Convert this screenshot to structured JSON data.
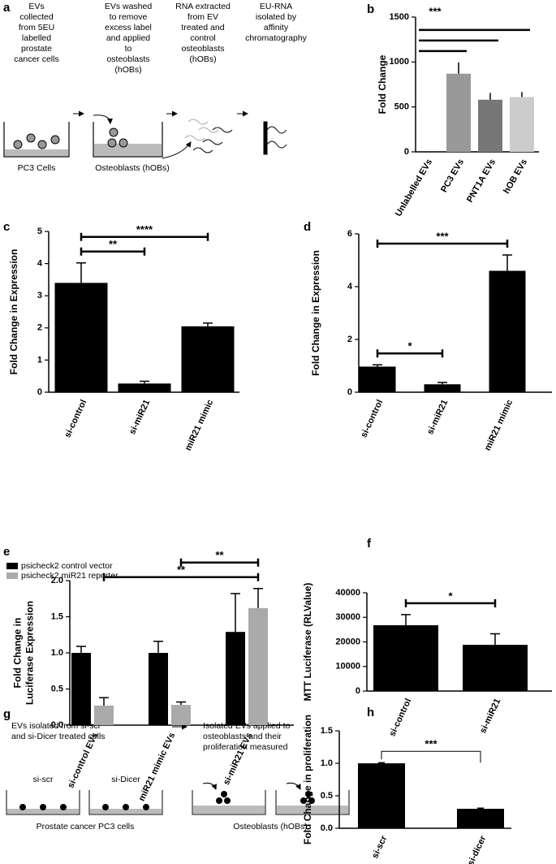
{
  "diagrams": {
    "a": {
      "panel": "a",
      "steps": [
        [
          "EVs",
          "collected",
          "from 5EU",
          "labelled",
          "prostate",
          "cancer cells"
        ],
        [
          "EVs washed",
          "to remove",
          "excess label",
          "and applied",
          "to",
          "osteoblasts",
          "(hOBs)"
        ],
        [
          "RNA extracted",
          "from EV",
          "treated and",
          "control",
          "osteoblasts",
          "(hOBs)"
        ],
        [
          "EU-RNA",
          "isolated by",
          "affinity",
          "chromatography"
        ]
      ],
      "labels": [
        "PC3 Cells",
        "Osteoblasts  (hOBs)"
      ]
    },
    "g": {
      "panel": "g",
      "steps": [
        [
          "EVs isolated from si-scr",
          "and si-Dicer treated cells"
        ],
        [
          "Isolated EVs applied to",
          "osteoblasts and their",
          "proliferation measured"
        ]
      ],
      "wells": [
        "si-scr",
        "si-Dicer"
      ],
      "labels": [
        "Prostate cancer PC3 cells",
        "Osteoblasts (hOBs)"
      ]
    }
  },
  "chart_data": [
    {
      "panel": "b",
      "type": "bar",
      "ylabel": [
        "Fold Change"
      ],
      "categories": [
        "Unlabelled EVs",
        "PC3 EVs",
        "PNT1A EVs",
        "hOB EVs"
      ],
      "values": [
        0,
        870,
        580,
        610
      ],
      "errors": [
        0,
        125,
        75,
        55
      ],
      "colors": [
        "#999999",
        "#999999",
        "#777777",
        "#cccccc"
      ],
      "ylim": [
        0,
        1500
      ],
      "yticks": [
        0,
        500,
        1000,
        1500
      ],
      "brackets": [
        {
          "from": 0,
          "to": 1
        },
        {
          "from": 0,
          "to": 2
        },
        {
          "from": 0,
          "to": 3,
          "label": "***"
        }
      ]
    },
    {
      "panel": "c",
      "type": "bar",
      "ylabel": [
        "Fold Change in Expression"
      ],
      "categories": [
        "si-control",
        "si-miR21",
        "miR21 mimic"
      ],
      "values": [
        3.4,
        0.27,
        2.05
      ],
      "errors": [
        0.62,
        0.07,
        0.1
      ],
      "color": "#000000",
      "ylim": [
        0,
        5
      ],
      "yticks": [
        0,
        1,
        2,
        3,
        4,
        5
      ],
      "brackets": [
        {
          "from": 0,
          "to": 1,
          "label": "**"
        },
        {
          "from": 0,
          "to": 2,
          "label": "****"
        }
      ]
    },
    {
      "panel": "d",
      "type": "bar",
      "ylabel": [
        "Fold Change in Expression"
      ],
      "categories": [
        "si-control",
        "si-miR21",
        "miR21 mimic"
      ],
      "values": [
        0.97,
        0.3,
        4.6
      ],
      "errors": [
        0.07,
        0.07,
        0.6
      ],
      "color": "#000000",
      "ylim": [
        0,
        6
      ],
      "yticks": [
        0,
        2,
        4,
        6
      ],
      "brackets": [
        {
          "from": 0,
          "to": 1,
          "label": "*"
        },
        {
          "from": 0,
          "to": 2,
          "label": "***"
        }
      ]
    },
    {
      "panel": "e",
      "type": "bar",
      "ylabel": [
        "Fold Change in",
        "Luciferase Expression"
      ],
      "categories": [
        "si-control EVs",
        "miR21 mimic EVs",
        "si-miR21 EVs"
      ],
      "series": [
        {
          "name": "psicheck2 control vector",
          "color": "#000000",
          "values": [
            1.0,
            1.0,
            1.29
          ],
          "errors": [
            0.09,
            0.16,
            0.53
          ]
        },
        {
          "name": "psicheck2 miR21 reporter",
          "color": "#aaaaaa",
          "values": [
            0.27,
            0.28,
            1.62
          ],
          "errors": [
            0.11,
            0.04,
            0.27
          ]
        }
      ],
      "ylim": [
        0,
        2.0
      ],
      "yticks": [
        {
          "value": 0,
          "label": "0.0"
        },
        0.5,
        {
          "value": 1,
          "label": "1.0"
        },
        1.5,
        {
          "value": 2,
          "label": "2.0"
        }
      ],
      "brackets": [
        {
          "from": [
            0,
            1
          ],
          "to": [
            2,
            1
          ],
          "label": "**"
        },
        {
          "from": [
            1,
            1
          ],
          "to": [
            2,
            1
          ],
          "label": "**"
        }
      ]
    },
    {
      "panel": "f",
      "type": "bar",
      "ylabel": [
        "MTT Luciferase (RLValue)"
      ],
      "categories": [
        "si-control",
        "si-miR21"
      ],
      "values": [
        26800,
        18800
      ],
      "errors": [
        4300,
        4500
      ],
      "color": "#000000",
      "ylim": [
        0,
        40000
      ],
      "yticks": [
        0,
        10000,
        20000,
        30000,
        40000
      ],
      "brackets": [
        {
          "from": 0,
          "to": 1,
          "label": "*"
        }
      ]
    },
    {
      "panel": "h",
      "type": "bar",
      "ylabel": [
        "Fold Change in proliferation"
      ],
      "categories": [
        "si-scr",
        "si-dicer"
      ],
      "values": [
        1.0,
        0.3
      ],
      "errors": [
        0.01,
        0.01
      ],
      "color": "#000000",
      "ylim": [
        0,
        1.5
      ],
      "yticks": [
        {
          "value": 0,
          "label": "0.0"
        },
        0.5,
        {
          "value": 1,
          "label": "1.0"
        },
        1.5
      ],
      "brackets": [
        {
          "from": 0,
          "to": 1,
          "label": "***"
        }
      ]
    }
  ]
}
